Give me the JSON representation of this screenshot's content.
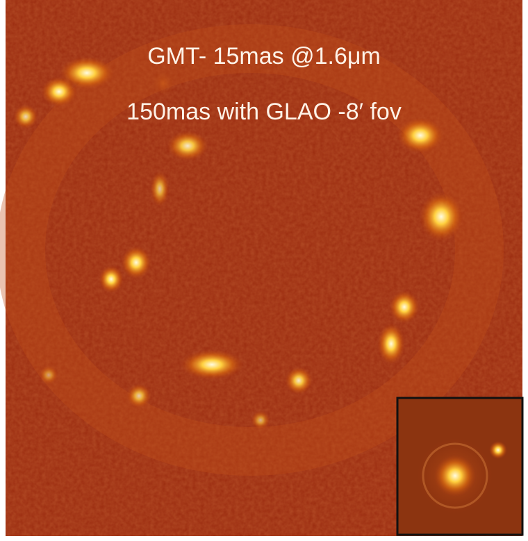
{
  "caption": {
    "line1": "GMT- 15mas @1.6μm",
    "line2": "150mas with GLAO -8′ fov"
  }
}
